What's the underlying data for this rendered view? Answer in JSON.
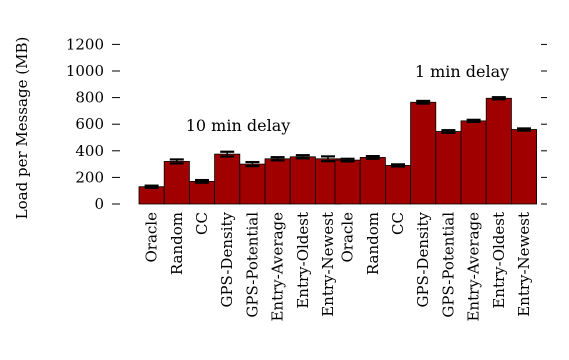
{
  "chart_data": {
    "type": "bar",
    "ylabel": "Load per Message (MB)",
    "ylim": [
      0,
      1200
    ],
    "yticks": [
      "0",
      "200",
      "400",
      "600",
      "800",
      "1000",
      "1200"
    ],
    "ytick_values": [
      0,
      200,
      400,
      600,
      800,
      1000,
      1200
    ],
    "grid": false,
    "bar_color": "#a00000",
    "error_color": "#000000",
    "categories": [
      "Oracle",
      "Random",
      "CC",
      "GPS-Density",
      "GPS-Potential",
      "Entry-Average",
      "Entry-Oldest",
      "Entry-Newest"
    ],
    "groups": [
      {
        "annotation": "10 min delay",
        "values": [
          130,
          320,
          170,
          375,
          300,
          340,
          355,
          340
        ],
        "errors": [
          8,
          15,
          10,
          18,
          15,
          12,
          12,
          18
        ]
      },
      {
        "annotation": "1 min delay",
        "values": [
          330,
          350,
          290,
          765,
          545,
          625,
          795,
          560
        ],
        "errors": [
          10,
          10,
          8,
          10,
          10,
          8,
          8,
          8
        ]
      }
    ]
  }
}
